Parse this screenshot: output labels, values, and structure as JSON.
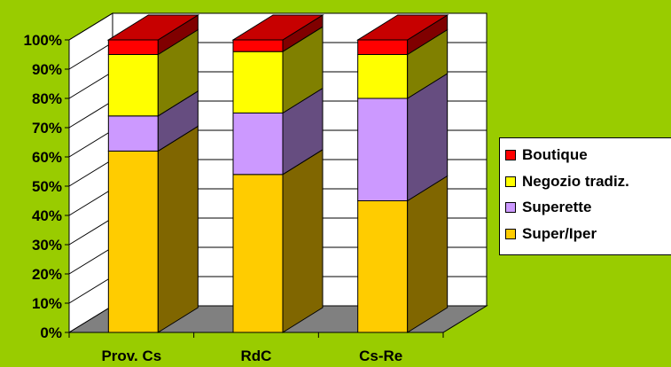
{
  "chart_data": {
    "type": "bar",
    "stacked": true,
    "three_d": true,
    "percent_axis": true,
    "categories": [
      "Prov. Cs",
      "RdC",
      "Cs-Re"
    ],
    "series": [
      {
        "name": "Super/Iper",
        "color": "#FFCC00",
        "values": [
          62,
          54,
          45
        ]
      },
      {
        "name": "Superette",
        "color": "#CC99FF",
        "values": [
          12,
          21,
          35
        ]
      },
      {
        "name": "Negozio tradiz.",
        "color": "#FFFF00",
        "values": [
          21,
          21,
          15
        ]
      },
      {
        "name": "Boutique",
        "color": "#FF0000",
        "values": [
          5,
          4,
          5
        ]
      }
    ],
    "ylim": [
      0,
      100
    ],
    "yticks": [
      "0%",
      "10%",
      "20%",
      "30%",
      "40%",
      "50%",
      "60%",
      "70%",
      "80%",
      "90%",
      "100%"
    ],
    "grid": true,
    "legend_position": "right",
    "legend_order": [
      "Boutique",
      "Negozio tradiz.",
      "Superette",
      "Super/Iper"
    ]
  }
}
